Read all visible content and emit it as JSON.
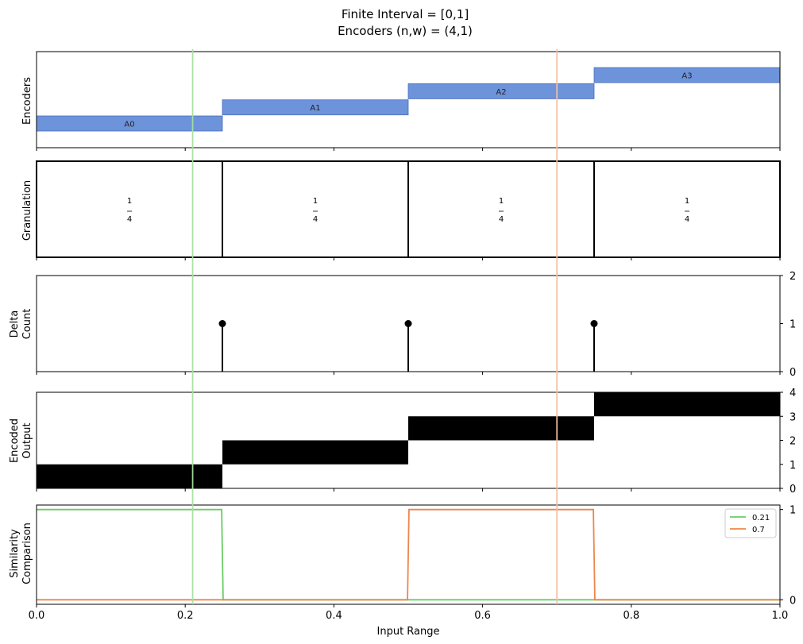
{
  "title": [
    "Finite Interval = [0,1]",
    "Encoders (n,w) = (4,1)"
  ],
  "xlabel": "Input Range",
  "x_ticks": [
    "0.0",
    "0.2",
    "0.4",
    "0.6",
    "0.8",
    "1.0"
  ],
  "panels": {
    "encoders": {
      "ylabel": [
        "Encoders"
      ]
    },
    "granulation": {
      "ylabel": [
        "Granulation"
      ]
    },
    "delta": {
      "ylabel": [
        "Delta",
        "Count"
      ],
      "y_ticks": [
        "0",
        "1",
        "2"
      ]
    },
    "encoded": {
      "ylabel": [
        "Encoded",
        "Output"
      ],
      "y_ticks": [
        "0",
        "1",
        "2",
        "3",
        "4"
      ]
    },
    "similarity": {
      "ylabel": [
        "Similarity",
        "Comparison"
      ],
      "y_ticks": [
        "0",
        "1"
      ]
    }
  },
  "colors": {
    "encoder_bar": "#6d93db",
    "encoder_edge": "#4a6fb8",
    "sim_green": "#6acc64",
    "sim_orange": "#ee854a",
    "vline_green": "#a8e0a0",
    "vline_orange": "#f5bfa0",
    "ink": "#000000"
  },
  "chart_data": [
    {
      "type": "bar",
      "panel": "encoders",
      "ylabel": "Encoders",
      "intervals": [
        {
          "label": "A0",
          "start": 0.0,
          "end": 0.25,
          "level": 0
        },
        {
          "label": "A1",
          "start": 0.25,
          "end": 0.5,
          "level": 1
        },
        {
          "label": "A2",
          "start": 0.5,
          "end": 0.75,
          "level": 2
        },
        {
          "label": "A3",
          "start": 0.75,
          "end": 1.0,
          "level": 3
        }
      ],
      "xlim": [
        0,
        1
      ]
    },
    {
      "type": "bar",
      "panel": "granulation",
      "ylabel": "Granulation",
      "cells": [
        {
          "start": 0.0,
          "end": 0.25,
          "num": "1",
          "den": "4"
        },
        {
          "start": 0.25,
          "end": 0.5,
          "num": "1",
          "den": "4"
        },
        {
          "start": 0.5,
          "end": 0.75,
          "num": "1",
          "den": "4"
        },
        {
          "start": 0.75,
          "end": 1.0,
          "num": "1",
          "den": "4"
        }
      ],
      "xlim": [
        0,
        1
      ]
    },
    {
      "type": "scatter",
      "panel": "delta",
      "ylabel": "Delta Count",
      "x": [
        0.25,
        0.5,
        0.75
      ],
      "y": [
        1,
        1,
        1
      ],
      "xlim": [
        0,
        1
      ],
      "ylim": [
        0,
        2
      ]
    },
    {
      "type": "heatmap",
      "panel": "encoded",
      "ylabel": "Encoded Output",
      "blocks": [
        {
          "start": 0.0,
          "end": 0.25,
          "bit": 0
        },
        {
          "start": 0.25,
          "end": 0.5,
          "bit": 1
        },
        {
          "start": 0.5,
          "end": 0.75,
          "bit": 2
        },
        {
          "start": 0.75,
          "end": 1.0,
          "bit": 3
        }
      ],
      "xlim": [
        0,
        1
      ],
      "ylim": [
        0,
        4
      ]
    },
    {
      "type": "line",
      "panel": "similarity",
      "ylabel": "Similarity Comparison",
      "series": [
        {
          "name": "0.21",
          "x": [
            0.0,
            0.249,
            0.251,
            1.0
          ],
          "y": [
            1,
            1,
            0,
            0
          ]
        },
        {
          "name": "0.7",
          "x": [
            0.0,
            0.499,
            0.501,
            0.749,
            0.751,
            1.0
          ],
          "y": [
            0,
            0,
            1,
            1,
            0,
            0
          ]
        }
      ],
      "xlim": [
        0,
        1
      ],
      "ylim": [
        -0.05,
        1.05
      ],
      "legend": "top-right"
    }
  ],
  "reference_lines": [
    {
      "x": 0.21,
      "color_key": "vline_green"
    },
    {
      "x": 0.7,
      "color_key": "vline_orange"
    }
  ]
}
